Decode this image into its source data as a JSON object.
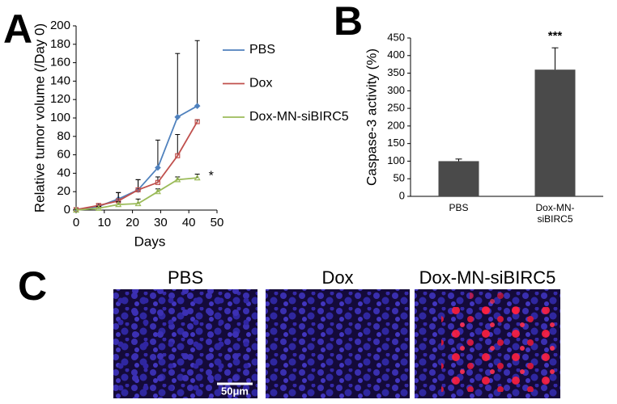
{
  "panel_labels": [
    "A",
    "B",
    "C"
  ],
  "chart_data": [
    {
      "type": "line",
      "xlabel": "Days",
      "ylabel": "Relative tumor volume (/Day 0)",
      "x": [
        0,
        8,
        15,
        22,
        29,
        36,
        43
      ],
      "xlim": [
        0,
        50
      ],
      "xticks": [
        0,
        10,
        20,
        30,
        40,
        50
      ],
      "ylim": [
        0,
        200
      ],
      "yticks": [
        0,
        20,
        40,
        60,
        80,
        100,
        120,
        140,
        160,
        180,
        200
      ],
      "series": [
        {
          "name": "PBS",
          "color": "#4f81bd",
          "marker": "diamond",
          "values": [
            0.5,
            4,
            12,
            22,
            46,
            101,
            113
          ],
          "errors": [
            0.5,
            3,
            7,
            11,
            30,
            69,
            71
          ]
        },
        {
          "name": "Dox",
          "color": "#c0504d",
          "marker": "square",
          "values": [
            0.5,
            5,
            10,
            22,
            30,
            59,
            96
          ],
          "errors": [
            0.5,
            2,
            9,
            11,
            6,
            23,
            2
          ]
        },
        {
          "name": "Dox-MN-siBIRC5",
          "color": "#9bbb59",
          "marker": "triangle",
          "values": [
            0,
            2,
            6,
            7,
            20,
            33,
            35
          ],
          "errors": [
            0.5,
            2,
            3,
            5,
            3,
            3,
            4
          ]
        }
      ],
      "annotation": "*"
    },
    {
      "type": "bar",
      "ylabel": "Caspase-3 activity (%)",
      "categories": [
        "PBS",
        "Dox-MN-siBIRC5"
      ],
      "values": [
        100,
        360
      ],
      "errors": [
        6,
        62
      ],
      "color": "#4a4a4a",
      "ylim": [
        0,
        450
      ],
      "yticks": [
        0,
        50,
        100,
        150,
        200,
        250,
        300,
        350,
        400,
        450
      ],
      "annotation": "***"
    }
  ],
  "images": {
    "titles": [
      "PBS",
      "Dox",
      "Dox-MN-siBIRC5"
    ],
    "scale_bar": "50μm"
  }
}
